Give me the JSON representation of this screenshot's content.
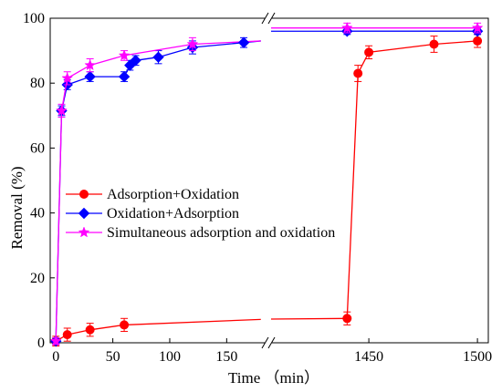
{
  "chart_data": {
    "type": "line",
    "title": "",
    "xlabel": "Time （min）",
    "ylabel": "Removal (%)",
    "ylim": [
      0,
      100
    ],
    "yticks": [
      0,
      20,
      40,
      60,
      80,
      100
    ],
    "x_segments": [
      {
        "range": [
          -5,
          185
        ],
        "ticks": [
          0,
          50,
          100,
          150
        ]
      },
      {
        "range": [
          1405,
          1505
        ],
        "ticks": [
          1450,
          1500
        ]
      }
    ],
    "legend_position": "center-left",
    "grid": false,
    "series": [
      {
        "name": "Adsorption+Oxidation",
        "color": "#ff0000",
        "marker": "circle",
        "points": [
          {
            "x": 0,
            "y": 0.5,
            "err": 1.5
          },
          {
            "x": 10,
            "y": 2.5,
            "err": 2.0
          },
          {
            "x": 30,
            "y": 4.0,
            "err": 2.0
          },
          {
            "x": 60,
            "y": 5.5,
            "err": 2.0
          },
          {
            "x": 1440,
            "y": 7.5,
            "err": 2.0
          },
          {
            "x": 1445,
            "y": 83.0,
            "err": 2.5
          },
          {
            "x": 1450,
            "y": 89.5,
            "err": 2.0
          },
          {
            "x": 1480,
            "y": 92.0,
            "err": 2.5
          },
          {
            "x": 1500,
            "y": 93.0,
            "err": 2.0
          }
        ]
      },
      {
        "name": "Oxidation+Adsorption",
        "color": "#0000ff",
        "marker": "diamond",
        "points": [
          {
            "x": 0,
            "y": 0.5,
            "err": 1.0
          },
          {
            "x": 5,
            "y": 71.5,
            "err": 1.5
          },
          {
            "x": 10,
            "y": 79.5,
            "err": 1.5
          },
          {
            "x": 30,
            "y": 82.0,
            "err": 1.5
          },
          {
            "x": 60,
            "y": 82.0,
            "err": 1.5
          },
          {
            "x": 65,
            "y": 85.5,
            "err": 1.5
          },
          {
            "x": 70,
            "y": 87.0,
            "err": 1.5
          },
          {
            "x": 90,
            "y": 88.0,
            "err": 2.0
          },
          {
            "x": 120,
            "y": 91.0,
            "err": 2.0
          },
          {
            "x": 165,
            "y": 92.5,
            "err": 1.5
          },
          {
            "x": 1440,
            "y": 96.0,
            "err": 1.0
          },
          {
            "x": 1500,
            "y": 96.0,
            "err": 1.0
          }
        ]
      },
      {
        "name": "Simultaneous adsorption and oxidation",
        "color": "#ff00ff",
        "marker": "star",
        "points": [
          {
            "x": 0,
            "y": 0.5,
            "err": 1.0
          },
          {
            "x": 5,
            "y": 71.5,
            "err": 2.0
          },
          {
            "x": 10,
            "y": 81.5,
            "err": 2.0
          },
          {
            "x": 30,
            "y": 85.5,
            "err": 2.0
          },
          {
            "x": 60,
            "y": 88.5,
            "err": 1.5
          },
          {
            "x": 120,
            "y": 92.0,
            "err": 2.0
          },
          {
            "x": 1440,
            "y": 97.0,
            "err": 1.5
          },
          {
            "x": 1500,
            "y": 97.0,
            "err": 1.5
          }
        ]
      }
    ],
    "lead_ins": [
      {
        "color": "#ff0000",
        "from": {
          "x": 60,
          "y": 5.5
        },
        "to": {
          "x": 180,
          "y": 7.2
        }
      },
      {
        "color": "#ff0000",
        "from": {
          "x": 1405,
          "y": 7.3
        },
        "to": {
          "x": 1440,
          "y": 7.5
        }
      },
      {
        "color": "#0000ff",
        "from": {
          "x": 165,
          "y": 92.5
        },
        "to": {
          "x": 180,
          "y": 93.0
        }
      },
      {
        "color": "#0000ff",
        "from": {
          "x": 1405,
          "y": 96.0
        },
        "to": {
          "x": 1440,
          "y": 96.0
        }
      },
      {
        "color": "#ff00ff",
        "from": {
          "x": 120,
          "y": 92.0
        },
        "to": {
          "x": 180,
          "y": 93.0
        }
      },
      {
        "color": "#ff00ff",
        "from": {
          "x": 1405,
          "y": 97.0
        },
        "to": {
          "x": 1440,
          "y": 97.0
        }
      }
    ]
  }
}
